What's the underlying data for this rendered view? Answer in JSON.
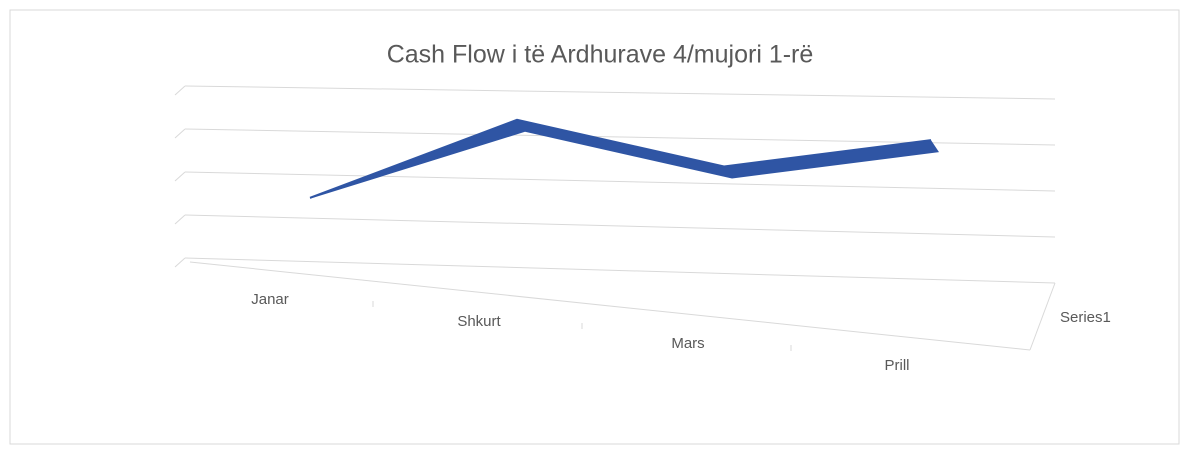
{
  "chart_data": {
    "type": "line",
    "title": "Cash Flow i të Ardhurave 4/mujori 1-rë",
    "categories": [
      "Janar",
      "Shkurt",
      "Mars",
      "Prill"
    ],
    "series": [
      {
        "name": "Series1",
        "color": "#2f55a4",
        "values": [
          1.4,
          3.4,
          2.5,
          3.3
        ]
      }
    ],
    "ylim": [
      0,
      4
    ],
    "yticks": [
      0,
      1,
      2,
      3,
      4
    ],
    "grid": true
  }
}
